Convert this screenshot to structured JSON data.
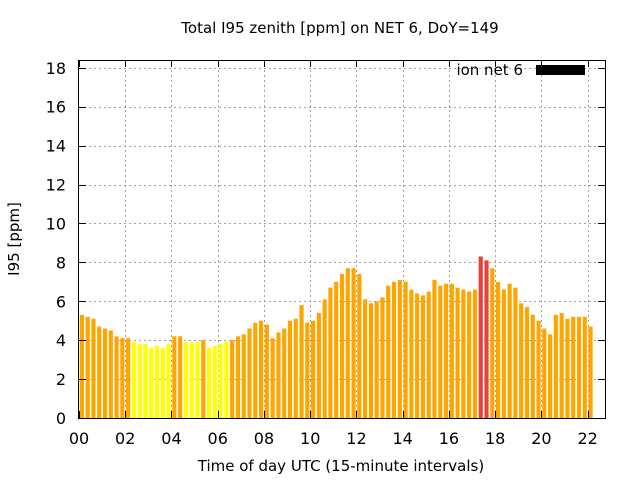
{
  "chart_data": {
    "type": "bar",
    "title": "Total I95 zenith [ppm] on NET 6, DoY=149",
    "xlabel": "Time of day UTC (15-minute intervals)",
    "ylabel": "I95 [ppm]",
    "ylim": [
      0,
      18.4
    ],
    "xlim": [
      0,
      22.75
    ],
    "yticks": [
      0,
      2,
      4,
      6,
      8,
      10,
      12,
      14,
      16,
      18
    ],
    "xticks": [
      0,
      2,
      4,
      6,
      8,
      10,
      12,
      14,
      16,
      18,
      20,
      22
    ],
    "xtick_labels": [
      "00",
      "02",
      "04",
      "06",
      "08",
      "10",
      "12",
      "14",
      "16",
      "18",
      "20",
      "22"
    ],
    "ytick_labels": [
      "0",
      "2",
      "4",
      "6",
      "8",
      "10",
      "12",
      "14",
      "16",
      "18"
    ],
    "grid": true,
    "legend": {
      "label": "ion net 6",
      "color": "#000000",
      "position": "top-right"
    },
    "interval_hours": 0.25,
    "colors": {
      "low": "#ffff00",
      "mid": "#ffa500",
      "high": "#e8403a"
    },
    "color_rule": "yellow below 4, orange 4-8, red 8 and above",
    "values": [
      5.3,
      5.2,
      5.1,
      4.7,
      4.6,
      4.5,
      4.2,
      4.1,
      4.1,
      3.9,
      3.8,
      3.8,
      3.6,
      3.7,
      3.6,
      3.8,
      4.2,
      4.2,
      3.9,
      3.9,
      3.9,
      4.0,
      3.6,
      3.7,
      3.8,
      3.9,
      4.0,
      4.2,
      4.3,
      4.6,
      4.9,
      5.0,
      4.8,
      4.1,
      4.4,
      4.6,
      5.0,
      5.1,
      5.8,
      4.9,
      5.0,
      5.4,
      6.1,
      6.7,
      7.0,
      7.4,
      7.7,
      7.7,
      7.4,
      6.1,
      5.9,
      6.0,
      6.2,
      6.8,
      7.0,
      7.1,
      7.0,
      6.6,
      6.4,
      6.3,
      6.5,
      7.1,
      6.8,
      6.9,
      6.9,
      6.7,
      6.6,
      6.5,
      6.6,
      8.3,
      8.1,
      7.7,
      7.0,
      6.6,
      6.9,
      6.7,
      5.9,
      5.7,
      5.3,
      5.0,
      4.6,
      4.3,
      5.3,
      5.4,
      5.1,
      5.2,
      5.2,
      5.2,
      4.7
    ]
  }
}
